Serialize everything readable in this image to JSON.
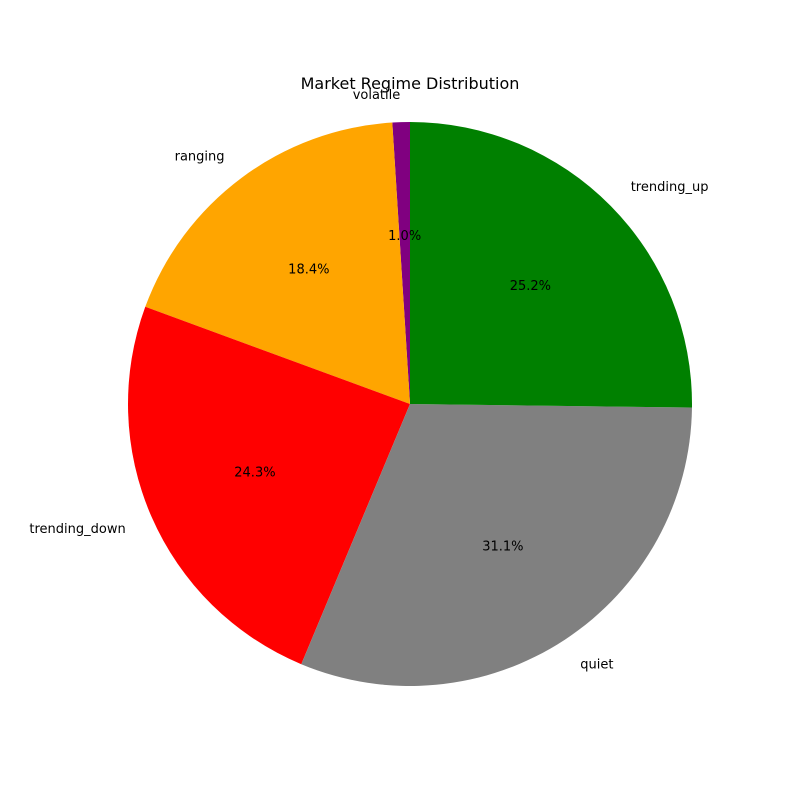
{
  "chart_data": {
    "type": "pie",
    "title": "Market Regime Distribution",
    "start_angle_deg": 90,
    "direction": "counterclockwise",
    "slices": [
      {
        "label": "volatile",
        "value": 1.0,
        "pct_label": "1.0%",
        "color": "#800080"
      },
      {
        "label": "ranging",
        "value": 18.4,
        "pct_label": "18.4%",
        "color": "#FFA500"
      },
      {
        "label": "trending_down",
        "value": 24.3,
        "pct_label": "24.3%",
        "color": "#FF0000"
      },
      {
        "label": "quiet",
        "value": 31.1,
        "pct_label": "31.1%",
        "color": "#808080"
      },
      {
        "label": "trending_up",
        "value": 25.2,
        "pct_label": "25.2%",
        "color": "#008000"
      }
    ]
  }
}
